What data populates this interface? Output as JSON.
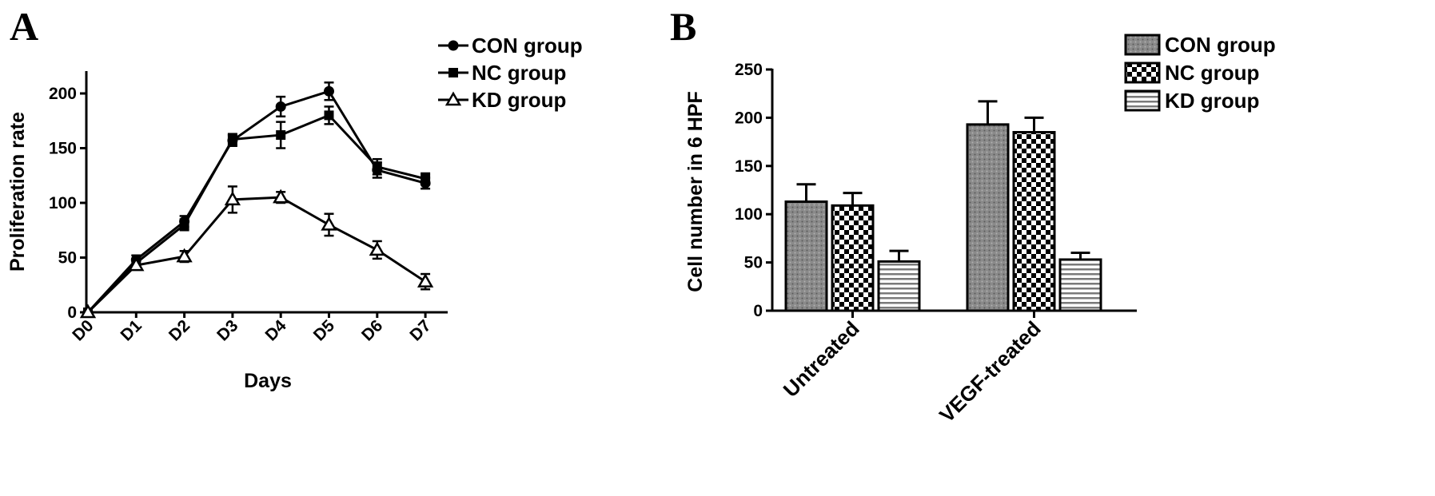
{
  "panels": {
    "a_letter": "A",
    "b_letter": "B"
  },
  "chart_data": [
    {
      "type": "line",
      "xlabel": "Days",
      "ylabel": "Proliferation rate",
      "categories": [
        "D0",
        "D1",
        "D2",
        "D3",
        "D4",
        "D5",
        "D6",
        "D7"
      ],
      "ylim": [
        0,
        220
      ],
      "yticks": [
        0,
        50,
        100,
        150,
        200
      ],
      "legend_position": "top-right",
      "series": [
        {
          "name": "CON group",
          "marker": "circle",
          "values": [
            0,
            48,
            83,
            157,
            188,
            202,
            130,
            118
          ],
          "errors": [
            0,
            4,
            5,
            5,
            9,
            8,
            7,
            5
          ]
        },
        {
          "name": "NC group",
          "marker": "square",
          "values": [
            0,
            45,
            80,
            158,
            162,
            180,
            133,
            122
          ],
          "errors": [
            0,
            4,
            5,
            5,
            12,
            8,
            7,
            5
          ]
        },
        {
          "name": "KD group",
          "marker": "triangle",
          "values": [
            0,
            43,
            51,
            103,
            105,
            80,
            57,
            28
          ],
          "errors": [
            0,
            4,
            5,
            12,
            5,
            10,
            8,
            7
          ]
        }
      ]
    },
    {
      "type": "bar",
      "ylabel": "Cell number in 6 HPF",
      "categories": [
        "Untreated",
        "VEGF-treated"
      ],
      "ylim": [
        0,
        250
      ],
      "yticks": [
        0,
        50,
        100,
        150,
        200,
        250
      ],
      "legend_position": "top-right",
      "series": [
        {
          "name": "CON group",
          "pattern": "dots",
          "values": [
            113,
            193
          ],
          "errors": [
            18,
            24
          ]
        },
        {
          "name": "NC group",
          "pattern": "checker",
          "values": [
            109,
            185
          ],
          "errors": [
            13,
            15
          ]
        },
        {
          "name": "KD group",
          "pattern": "stripes",
          "values": [
            51,
            53
          ],
          "errors": [
            11,
            7
          ]
        }
      ]
    }
  ]
}
